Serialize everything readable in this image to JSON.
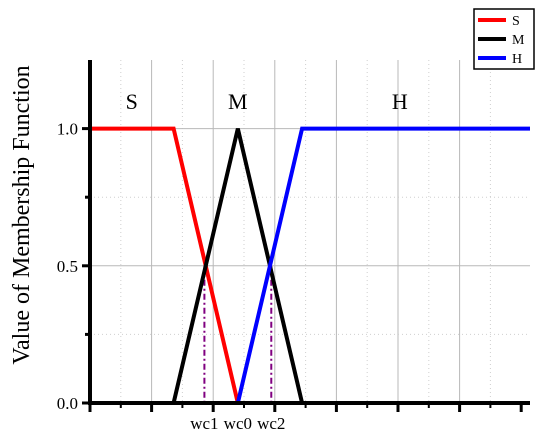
{
  "chart_data": {
    "type": "line",
    "title": "",
    "xlabel": "",
    "ylabel": "Value of  Membership Function",
    "xlim": [
      0,
      1
    ],
    "ylim": [
      0,
      1.25
    ],
    "y_ticks": [
      {
        "value": 0.0,
        "label": "0.0"
      },
      {
        "value": 0.5,
        "label": "0.5"
      },
      {
        "value": 1.0,
        "label": "1.0"
      }
    ],
    "x_tick_labels": [
      {
        "value": 0.26,
        "label": "wc1"
      },
      {
        "value": 0.336,
        "label": "wc0"
      },
      {
        "value": 0.412,
        "label": "wc2"
      }
    ],
    "grid": true,
    "legend_position": "top-right",
    "series": [
      {
        "name": "S",
        "color": "#ff0000",
        "x": [
          0.0,
          0.19,
          0.336
        ],
        "y": [
          1.0,
          1.0,
          0.0
        ]
      },
      {
        "name": "M",
        "color": "#000000",
        "x": [
          0.19,
          0.336,
          0.482
        ],
        "y": [
          0.0,
          1.0,
          0.0
        ]
      },
      {
        "name": "H",
        "color": "#0000ff",
        "x": [
          0.336,
          0.482,
          1.0
        ],
        "y": [
          0.0,
          1.0,
          1.0
        ]
      }
    ],
    "region_labels": [
      {
        "text": "S",
        "x": 0.095,
        "y": 1.1
      },
      {
        "text": "M",
        "x": 0.336,
        "y": 1.1
      },
      {
        "text": "H",
        "x": 0.704,
        "y": 1.1
      }
    ],
    "guide_lines": [
      {
        "x": 0.26,
        "y": 0.5
      },
      {
        "x": 0.412,
        "y": 0.5
      }
    ],
    "guide_color": "#800080"
  }
}
